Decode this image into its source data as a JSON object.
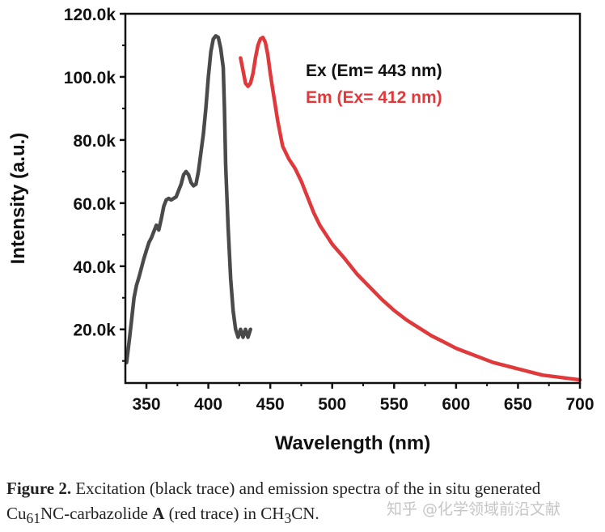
{
  "chart_data": {
    "type": "line",
    "xlabel": "Wavelength (nm)",
    "ylabel": "Intensity (a.u.)",
    "xlim": [
      333,
      700
    ],
    "ylim": [
      3000,
      120000
    ],
    "x_ticks": [
      350,
      400,
      450,
      500,
      550,
      600,
      650,
      700
    ],
    "x_tick_labels": [
      "350",
      "400",
      "450",
      "500",
      "550",
      "600",
      "650",
      "700"
    ],
    "y_ticks": [
      20000,
      40000,
      60000,
      80000,
      100000,
      120000
    ],
    "y_tick_labels": [
      "20.0k",
      "40.0k",
      "60.0k",
      "80.0k",
      "100.0k",
      "120.0k"
    ],
    "series": [
      {
        "name": "Ex (Em= 443 nm)",
        "color": "#4a4a4a",
        "x": [
          334,
          336,
          338,
          340,
          342,
          344,
          346,
          348,
          350,
          352,
          354,
          356,
          358,
          360,
          362,
          364,
          366,
          368,
          370,
          372,
          374,
          376,
          378,
          380,
          382,
          384,
          386,
          388,
          390,
          392,
          394,
          396,
          398,
          400,
          402,
          404,
          406,
          408,
          410,
          412,
          413,
          414,
          416,
          418,
          420,
          422,
          424,
          426,
          428,
          430,
          432,
          434
        ],
        "y": [
          9500,
          16000,
          23000,
          30000,
          34000,
          36500,
          39500,
          42500,
          45000,
          47500,
          49000,
          51000,
          53000,
          51500,
          55000,
          59000,
          61000,
          61500,
          61000,
          61500,
          62000,
          64000,
          66000,
          69000,
          70000,
          69000,
          66500,
          65500,
          66000,
          70000,
          76000,
          82000,
          90000,
          100000,
          108000,
          112000,
          113000,
          112500,
          109000,
          103000,
          90000,
          72000,
          52000,
          36000,
          26000,
          20000,
          17500,
          20000,
          17500,
          20000,
          17500,
          20000
        ]
      },
      {
        "name": "Em (Ex= 412 nm)",
        "color": "#e0393b",
        "x": [
          426,
          428,
          430,
          432,
          434,
          436,
          438,
          440,
          442,
          444,
          446,
          448,
          450,
          452,
          454,
          456,
          458,
          460,
          465,
          470,
          475,
          480,
          485,
          490,
          495,
          500,
          510,
          520,
          530,
          540,
          550,
          560,
          570,
          580,
          590,
          600,
          610,
          620,
          630,
          640,
          650,
          660,
          670,
          680,
          690,
          700
        ],
        "y": [
          106000,
          102000,
          98000,
          97000,
          98000,
          101000,
          106000,
          110000,
          112000,
          112500,
          111000,
          107000,
          101000,
          96000,
          91000,
          86000,
          82000,
          78000,
          74000,
          71000,
          67000,
          62000,
          57000,
          53000,
          50000,
          47000,
          42500,
          37500,
          33500,
          29500,
          26000,
          23000,
          20500,
          18000,
          16000,
          14000,
          12500,
          11000,
          9500,
          8500,
          7500,
          6500,
          5500,
          5000,
          4500,
          4000
        ]
      }
    ]
  },
  "caption": {
    "label": "Figure 2.",
    "text_1": " Excitation (black trace) and emission spectra of the in situ generated Cu",
    "subscript_1": "61",
    "text_2": "NC-carbazolide ",
    "compound": "A",
    "text_3": " (red trace) in CH",
    "subscript_2": "3",
    "text_4": "CN."
  },
  "watermark": "知乎 @化学领域前沿文献"
}
